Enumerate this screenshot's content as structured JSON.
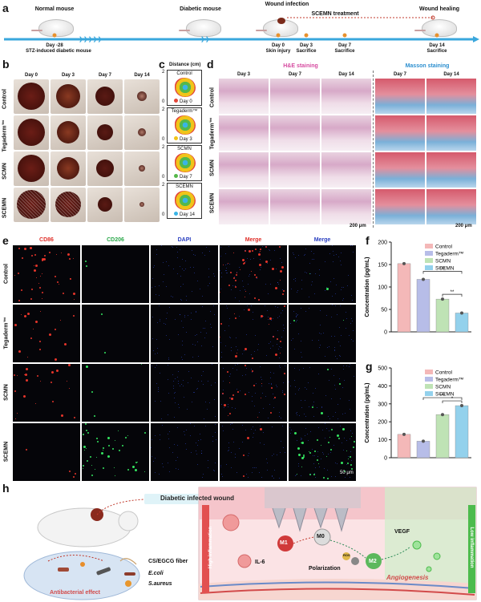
{
  "panel_a": {
    "letter": "a",
    "normal_mouse": "Normal mouse",
    "diabetic_mouse": "Diabetic mouse",
    "wound_infection": "Wound infection",
    "scemn_treatment": "SCEMN treatment",
    "wound_healing": "Wound healing",
    "day_m28": "Day -28",
    "stz": "STZ-induced diabetic mouse",
    "day0": "Day 0",
    "skin_injury": "Skin injury",
    "day3": "Day 3",
    "day3_sub": "Sacrifice",
    "day7": "Day 7",
    "day7_sub": "Sacrifice",
    "day14": "Day 14",
    "day14_sub": "Sacrifice"
  },
  "panel_b": {
    "letter": "b",
    "columns": [
      "Day 0",
      "Day 3",
      "Day 7",
      "Day 14"
    ],
    "rows": [
      "Control",
      "Tegaderm™",
      "SCMN",
      "SCEMN"
    ]
  },
  "panel_c": {
    "letter": "c",
    "title": "Distance (cm)",
    "groups": [
      "Control",
      "Tegaderm™",
      "SCMN",
      "SCEMN"
    ],
    "axis_top": "2",
    "axis_bottom": "0",
    "legend": [
      {
        "label": "Day 0",
        "color": "#e3463a"
      },
      {
        "label": "Day 3",
        "color": "#f0c419"
      },
      {
        "label": "Day 7",
        "color": "#55b84a"
      },
      {
        "label": "Day 14",
        "color": "#39b4e6"
      }
    ]
  },
  "panel_d": {
    "letter": "d",
    "he_title": "H&E staining",
    "masson_title": "Masson staining",
    "he_columns": [
      "Day 3",
      "Day 7",
      "Day 14"
    ],
    "masson_columns": [
      "Day 7",
      "Day 14"
    ],
    "rows": [
      "Control",
      "Tegaderm™",
      "SCMN",
      "SCEMN"
    ],
    "scale1": "200 μm",
    "scale2": "200 μm"
  },
  "panel_e": {
    "letter": "e",
    "columns": [
      {
        "label": "CD86",
        "color": "#e0302a"
      },
      {
        "label": "CD206",
        "color": "#2aa84a"
      },
      {
        "label": "DAPI",
        "color": "#2a3fc0"
      },
      {
        "label": "Merge",
        "color": "#e0302a"
      },
      {
        "label": "Merge",
        "color": "#2a3fc0"
      }
    ],
    "rows": [
      "Control",
      "Tegaderm™",
      "SCMN",
      "SCEMN"
    ],
    "scale": "50 μm"
  },
  "chart_data": [
    {
      "panel": "f",
      "type": "bar",
      "categories": [
        "Control",
        "Tegaderm™",
        "SCMN",
        "SCEMN"
      ],
      "values": [
        152,
        117,
        73,
        42
      ],
      "ylabel": "Concentration (pg/mL)",
      "ylim": [
        0,
        200
      ],
      "yticks": [
        0,
        50,
        100,
        150,
        200
      ],
      "colors": [
        "#f4b8b8",
        "#b7bde8",
        "#bfe3b5",
        "#93d1ec"
      ],
      "significance": [
        "***",
        "**"
      ]
    },
    {
      "panel": "g",
      "type": "bar",
      "categories": [
        "Control",
        "Tegaderm™",
        "SCMN",
        "SCEMN"
      ],
      "values": [
        130,
        92,
        240,
        290
      ],
      "ylabel": "Concentration (pg/mL)",
      "ylim": [
        0,
        500
      ],
      "yticks": [
        0,
        100,
        200,
        300,
        400,
        500
      ],
      "colors": [
        "#f4b8b8",
        "#b7bde8",
        "#bfe3b5",
        "#93d1ec"
      ],
      "significance": [
        "***",
        "*"
      ]
    }
  ],
  "panel_h": {
    "letter": "h",
    "diabetic_wound": "Diabetic infected wound",
    "antibacterial": "Antibacterial effect",
    "fiber": "CS/EGCG fiber",
    "ecoli": "E.coli",
    "saureus": "S.aureus",
    "high_inflammation": "High inflammation",
    "low_inflammation": "Low inflammation",
    "il6": "IL-6",
    "m0": "M0",
    "m1": "M1",
    "m2": "M2",
    "ros": "ROS",
    "polarization": "Polarization",
    "vegf": "VEGF",
    "angiogenesis": "Angiogenesis"
  }
}
